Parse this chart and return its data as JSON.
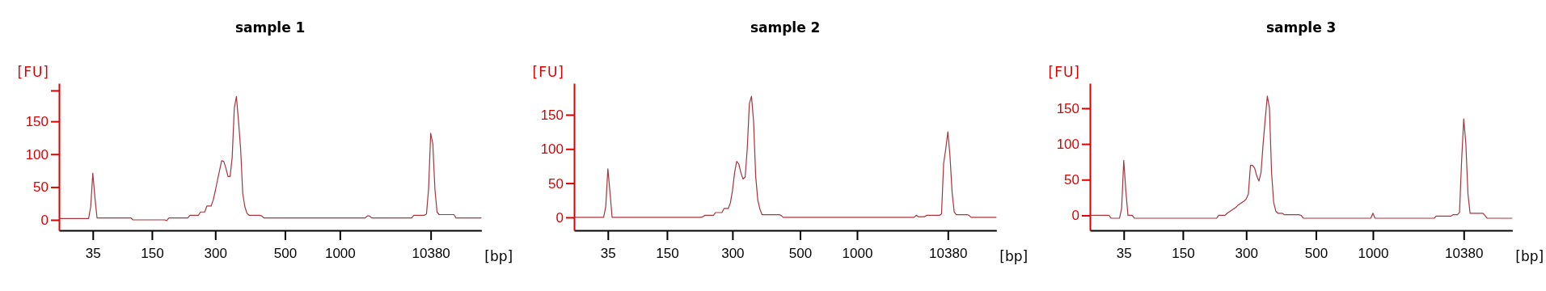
{
  "chart_data": [
    {
      "type": "line",
      "title": "sample 1",
      "xlabel": "[bp]",
      "ylabel": "[FU]",
      "ylim": [
        -16,
        208
      ],
      "categories": [
        null,
        null,
        null,
        null,
        null,
        null,
        null,
        null,
        null,
        null,
        null,
        null,
        null,
        null,
        null,
        null,
        "35",
        null,
        null,
        null,
        null,
        null,
        null,
        null,
        null,
        null,
        null,
        null,
        null,
        null,
        null,
        null,
        null,
        null,
        null,
        null,
        null,
        null,
        null,
        null,
        null,
        null,
        null,
        null,
        "150",
        null,
        null,
        null,
        null,
        null,
        null,
        null,
        null,
        null,
        null,
        null,
        null,
        null,
        null,
        null,
        null,
        null,
        null,
        null,
        null,
        null,
        null,
        null,
        null,
        null,
        null,
        null,
        null,
        null,
        "300",
        null,
        null,
        null,
        null,
        null,
        null,
        null,
        null,
        null,
        null,
        null,
        null,
        null,
        null,
        null,
        null,
        null,
        null,
        null,
        null,
        null,
        null,
        null,
        null,
        null,
        null,
        null,
        null,
        null,
        null,
        null,
        null,
        "500",
        null,
        null,
        null,
        null,
        null,
        null,
        null,
        null,
        null,
        null,
        null,
        null,
        null,
        null,
        null,
        null,
        null,
        null,
        null,
        null,
        null,
        null,
        null,
        null,
        null,
        "1000",
        null,
        null,
        null,
        null,
        null,
        null,
        null,
        null,
        null,
        null,
        null,
        null,
        null,
        null,
        null,
        null,
        null,
        null,
        null,
        null,
        null,
        null,
        null,
        null,
        null,
        null,
        null,
        null,
        null,
        null,
        null,
        null,
        null,
        null,
        null,
        null,
        null,
        null,
        null,
        null,
        null,
        null,
        "10380",
        null,
        null,
        null,
        null,
        null,
        null,
        null,
        null,
        null,
        null,
        null,
        null,
        null,
        null,
        null,
        null,
        null,
        null,
        null,
        null,
        null,
        null,
        null,
        null
      ],
      "yticks": [
        0,
        50,
        100,
        150,
        {
          "value": 197,
          "label": null
        }
      ],
      "series": [
        {
          "color": "#a8343c",
          "values": [
            2,
            2,
            2,
            2,
            2,
            2,
            2,
            2,
            2,
            2,
            2,
            2,
            2,
            2,
            2,
            20,
            71,
            34,
            3,
            3,
            3,
            3,
            3,
            3,
            3,
            3,
            3,
            3,
            3,
            3,
            3,
            3,
            3,
            3,
            3,
            0,
            0,
            0,
            0,
            0,
            0,
            0,
            0,
            0,
            0,
            0,
            0,
            0,
            0,
            0,
            0,
            -1,
            3,
            3,
            3,
            3,
            3,
            3,
            3,
            3,
            3,
            3,
            7,
            7,
            7,
            7,
            7,
            12,
            12,
            12,
            21,
            21,
            21,
            30,
            44,
            60,
            75,
            90,
            89,
            79,
            66,
            66,
            95,
            170,
            188,
            150,
            108,
            40,
            20,
            10,
            7,
            7,
            7,
            7,
            7,
            7,
            6,
            3,
            3,
            3,
            3,
            3,
            3,
            3,
            3,
            3,
            3,
            3,
            3,
            3,
            3,
            3,
            3,
            3,
            3,
            3,
            3,
            3,
            3,
            3,
            3,
            3,
            3,
            3,
            3,
            3,
            3,
            3,
            3,
            3,
            3,
            3,
            3,
            3,
            3,
            3,
            3,
            3,
            3,
            3,
            3,
            3,
            3,
            3,
            3,
            3,
            6,
            6,
            3,
            3,
            3,
            3,
            3,
            3,
            3,
            3,
            3,
            3,
            3,
            3,
            3,
            3,
            3,
            3,
            3,
            3,
            3,
            3,
            7,
            7,
            7,
            7,
            7,
            7,
            9,
            47,
            132,
            116,
            47,
            12,
            8,
            8,
            8,
            8,
            8,
            8,
            8,
            8,
            3,
            3,
            3,
            3,
            3,
            3,
            3,
            3,
            3,
            3,
            3,
            3,
            3
          ]
        }
      ]
    },
    {
      "type": "line",
      "title": "sample 2",
      "xlabel": "[bp]",
      "ylabel": "[FU]",
      "ylim": [
        -19,
        196
      ],
      "categories": [
        null,
        null,
        null,
        null,
        null,
        null,
        null,
        null,
        null,
        null,
        null,
        null,
        null,
        null,
        null,
        null,
        "35",
        null,
        null,
        null,
        null,
        null,
        null,
        null,
        null,
        null,
        null,
        null,
        null,
        null,
        null,
        null,
        null,
        null,
        null,
        null,
        null,
        null,
        null,
        null,
        null,
        null,
        null,
        null,
        "150",
        null,
        null,
        null,
        null,
        null,
        null,
        null,
        null,
        null,
        null,
        null,
        null,
        null,
        null,
        null,
        null,
        null,
        null,
        null,
        null,
        null,
        null,
        null,
        null,
        null,
        null,
        null,
        null,
        null,
        null,
        "300",
        null,
        null,
        null,
        null,
        null,
        null,
        null,
        null,
        null,
        null,
        null,
        null,
        null,
        null,
        null,
        null,
        null,
        null,
        null,
        null,
        null,
        null,
        null,
        null,
        null,
        null,
        null,
        null,
        null,
        null,
        null,
        "500",
        null,
        null,
        null,
        null,
        null,
        null,
        null,
        null,
        null,
        null,
        null,
        null,
        null,
        null,
        null,
        null,
        null,
        null,
        null,
        null,
        null,
        null,
        null,
        null,
        null,
        null,
        "1000",
        null,
        null,
        null,
        null,
        null,
        null,
        null,
        null,
        null,
        null,
        null,
        null,
        null,
        null,
        null,
        null,
        null,
        null,
        null,
        null,
        null,
        null,
        null,
        null,
        null,
        null,
        null,
        null,
        null,
        null,
        null,
        null,
        null,
        null,
        null,
        null,
        null,
        null,
        null,
        null,
        null,
        null,
        "10380",
        null,
        null,
        null,
        null,
        null,
        null,
        null,
        null,
        null,
        null,
        null,
        null,
        null,
        null,
        null,
        null,
        null,
        null,
        null,
        null,
        null,
        null,
        null
      ],
      "yticks": [
        0,
        50,
        100,
        150
      ],
      "series": [
        {
          "color": "#a8343c",
          "values": [
            0,
            0,
            0,
            0,
            0,
            0,
            0,
            0,
            0,
            0,
            0,
            0,
            0,
            0,
            0,
            16,
            71,
            37,
            0,
            0,
            0,
            0,
            0,
            0,
            0,
            0,
            0,
            0,
            0,
            0,
            0,
            0,
            0,
            0,
            0,
            0,
            0,
            0,
            0,
            0,
            0,
            0,
            0,
            0,
            0,
            0,
            0,
            0,
            0,
            0,
            0,
            0,
            0,
            0,
            0,
            0,
            0,
            0,
            0,
            0,
            0,
            1,
            3,
            3,
            3,
            3,
            3,
            7,
            7,
            7,
            7,
            13,
            13,
            13,
            21,
            39,
            65,
            82,
            78,
            65,
            56,
            59,
            100,
            166,
            177,
            140,
            60,
            25,
            12,
            4,
            4,
            4,
            4,
            4,
            4,
            4,
            4,
            4,
            3,
            0,
            0,
            0,
            0,
            0,
            0,
            0,
            0,
            0,
            0,
            0,
            0,
            0,
            0,
            0,
            0,
            0,
            0,
            0,
            0,
            0,
            0,
            0,
            0,
            0,
            0,
            0,
            0,
            0,
            0,
            0,
            0,
            0,
            0,
            0,
            0,
            0,
            0,
            0,
            0,
            0,
            0,
            0,
            0,
            0,
            0,
            0,
            0,
            0,
            0,
            0,
            0,
            0,
            0,
            0,
            0,
            0,
            0,
            0,
            0,
            0,
            0,
            0,
            3,
            1,
            1,
            1,
            1,
            3,
            3,
            3,
            3,
            3,
            3,
            3,
            5,
            79,
            100,
            125,
            90,
            37,
            8,
            4,
            4,
            4,
            4,
            4,
            4,
            3,
            0,
            0,
            0,
            0,
            0,
            0,
            0,
            0,
            0,
            0,
            0,
            0,
            0
          ]
        }
      ]
    },
    {
      "type": "line",
      "title": "sample 3",
      "xlabel": "[bp]",
      "ylabel": "[FU]",
      "ylim": [
        -21,
        185
      ],
      "categories": [
        null,
        null,
        null,
        null,
        null,
        null,
        null,
        null,
        null,
        null,
        null,
        null,
        null,
        null,
        null,
        null,
        "35",
        null,
        null,
        null,
        null,
        null,
        null,
        null,
        null,
        null,
        null,
        null,
        null,
        null,
        null,
        null,
        null,
        null,
        null,
        null,
        null,
        null,
        null,
        null,
        null,
        null,
        null,
        null,
        "150",
        null,
        null,
        null,
        null,
        null,
        null,
        null,
        null,
        null,
        null,
        null,
        null,
        null,
        null,
        null,
        null,
        null,
        null,
        null,
        null,
        null,
        null,
        null,
        null,
        null,
        null,
        null,
        null,
        null,
        "300",
        null,
        null,
        null,
        null,
        null,
        null,
        null,
        null,
        null,
        null,
        null,
        null,
        null,
        null,
        null,
        null,
        null,
        null,
        null,
        null,
        null,
        null,
        null,
        null,
        null,
        null,
        null,
        null,
        null,
        null,
        null,
        null,
        "500",
        null,
        null,
        null,
        null,
        null,
        null,
        null,
        null,
        null,
        null,
        null,
        null,
        null,
        null,
        null,
        null,
        null,
        null,
        null,
        null,
        null,
        null,
        null,
        null,
        null,
        null,
        "1000",
        null,
        null,
        null,
        null,
        null,
        null,
        null,
        null,
        null,
        null,
        null,
        null,
        null,
        null,
        null,
        null,
        null,
        null,
        null,
        null,
        null,
        null,
        null,
        null,
        null,
        null,
        null,
        null,
        null,
        null,
        null,
        null,
        null,
        null,
        null,
        null,
        null,
        null,
        null,
        null,
        null,
        null,
        "10380",
        null,
        null,
        null,
        null,
        null,
        null,
        null,
        null,
        null,
        null,
        null,
        null,
        null,
        null,
        null,
        null,
        null,
        null,
        null,
        null,
        null,
        null,
        null
      ],
      "yticks": [
        0,
        50,
        100,
        150
      ],
      "series": [
        {
          "color": "#a8343c",
          "values": [
            0,
            0,
            0,
            0,
            0,
            0,
            0,
            0,
            0,
            0,
            -4,
            -4,
            -4,
            -4,
            -4,
            10,
            77,
            34,
            0,
            0,
            0,
            -4,
            -4,
            -4,
            -4,
            -4,
            -4,
            -4,
            -4,
            -4,
            -4,
            -4,
            -4,
            -4,
            -4,
            -4,
            -4,
            -4,
            -4,
            -4,
            -4,
            -4,
            -4,
            -4,
            -4,
            -4,
            -4,
            -4,
            -4,
            -4,
            -4,
            -4,
            -4,
            -4,
            -4,
            -4,
            -4,
            -4,
            -4,
            -4,
            -4,
            0,
            0,
            0,
            0,
            3,
            5,
            7,
            9,
            11,
            14,
            16,
            18,
            20,
            23,
            30,
            70,
            70,
            66,
            55,
            48,
            60,
            100,
            135,
            167,
            150,
            60,
            18,
            6,
            3,
            3,
            3,
            1,
            1,
            1,
            1,
            1,
            1,
            1,
            1,
            0,
            -4,
            -4,
            -4,
            -4,
            -4,
            -4,
            -4,
            -4,
            -4,
            -4,
            -4,
            -4,
            -4,
            -4,
            -4,
            -4,
            -4,
            -4,
            -4,
            -4,
            -4,
            -4,
            -4,
            -4,
            -4,
            -4,
            -4,
            -4,
            -4,
            -4,
            -4,
            -4,
            -4,
            3,
            -4,
            -4,
            -4,
            -4,
            -4,
            -4,
            -4,
            -4,
            -4,
            -4,
            -4,
            -4,
            -4,
            -4,
            -4,
            -4,
            -4,
            -4,
            -4,
            -4,
            -4,
            -4,
            -4,
            -4,
            -4,
            -4,
            -4,
            -4,
            -4,
            -1,
            -1,
            -1,
            -1,
            -1,
            -1,
            -1,
            -1,
            1,
            1,
            1,
            4,
            77,
            135,
            100,
            30,
            3,
            3,
            3,
            3,
            3,
            3,
            3,
            0,
            -4,
            -4,
            -4,
            -4,
            -4,
            -4,
            -4,
            -4,
            -4,
            -4,
            -4,
            -4,
            -4
          ]
        }
      ]
    }
  ]
}
